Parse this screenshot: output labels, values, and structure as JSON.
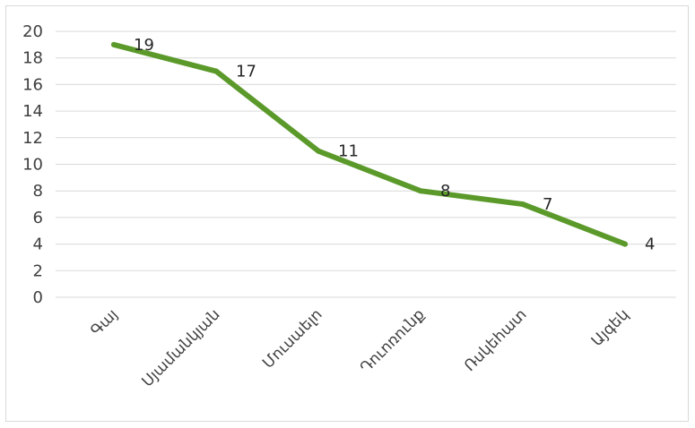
{
  "chart_data": {
    "type": "line",
    "categories": [
      "Գայ",
      "Սյամանկյան",
      "Մուսաելո",
      "Դուոռունք",
      "Ռսկեհատ",
      "Այգեկ"
    ],
    "series": [
      {
        "values": [
          19,
          17,
          11,
          8,
          7,
          4
        ]
      }
    ],
    "data_labels": [
      "19",
      "17",
      "11",
      "8",
      "7",
      "4"
    ],
    "y_ticks": [
      "0",
      "2",
      "4",
      "6",
      "8",
      "10",
      "12",
      "14",
      "16",
      "18",
      "20"
    ],
    "ylim": [
      0,
      20
    ],
    "grid": true,
    "legend": "none",
    "line_color": "#5b9a2a"
  }
}
